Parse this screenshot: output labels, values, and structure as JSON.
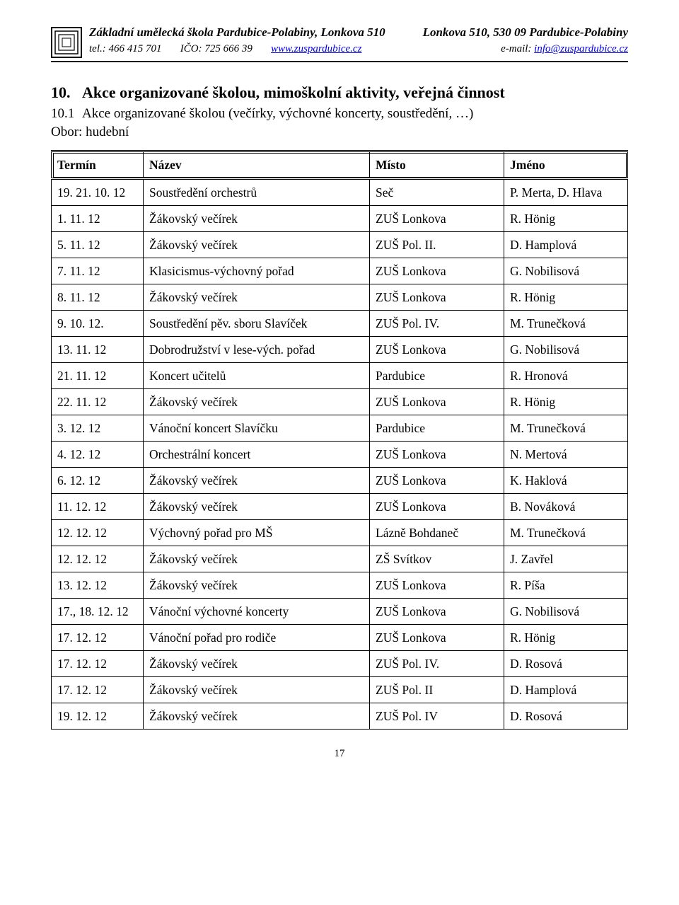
{
  "header": {
    "left_line1": "Základní umělecká škola Pardubice-Polabiny, Lonkova 510",
    "left_tel_label": "tel.: ",
    "left_tel": "466 415 701",
    "left_ico_label": "IČO: ",
    "left_ico": "725 666 39",
    "left_url": "www.zuspardubice.cz",
    "right_line1": "Lonkova 510, 530 09 Pardubice-Polabiny",
    "right_email_label": "e-mail: ",
    "right_email": "info@zuspardubice.cz"
  },
  "section": {
    "num": "10.",
    "title": "Akce organizované školou, mimoškolní aktivity, veřejná činnost",
    "sub_num": "10.1",
    "sub_title": "Akce organizované školou (večírky, výchovné koncerty, soustředění, …)",
    "obor_label": "Obor: hudební"
  },
  "table": {
    "columns": [
      "Termín",
      "Název",
      "Místo",
      "Jméno"
    ],
    "rows": [
      [
        "19. 21. 10. 12",
        "Soustředění orchestrů",
        "Seč",
        "P. Merta, D. Hlava"
      ],
      [
        "1. 11. 12",
        "Žákovský večírek",
        "ZUŠ Lonkova",
        "R. Hönig"
      ],
      [
        "5. 11. 12",
        "Žákovský večírek",
        "ZUŠ Pol. II.",
        "D. Hamplová"
      ],
      [
        "7. 11. 12",
        "Klasicismus-výchovný pořad",
        "ZUŠ Lonkova",
        "G. Nobilisová"
      ],
      [
        "8. 11. 12",
        "Žákovský večírek",
        "ZUŠ Lonkova",
        "R. Hönig"
      ],
      [
        "9. 10. 12.",
        "Soustředění pěv. sboru Slavíček",
        "ZUŠ Pol. IV.",
        "M. Trunečková"
      ],
      [
        "13. 11. 12",
        "Dobrodružství v lese-vých. pořad",
        "ZUŠ Lonkova",
        "G. Nobilisová"
      ],
      [
        "21. 11. 12",
        "Koncert učitelů",
        "Pardubice",
        "R. Hronová"
      ],
      [
        "22. 11. 12",
        "Žákovský večírek",
        "ZUŠ Lonkova",
        "R. Hönig"
      ],
      [
        "3. 12. 12",
        "Vánoční koncert Slavíčku",
        "Pardubice",
        "M. Trunečková"
      ],
      [
        "4. 12. 12",
        "Orchestrální koncert",
        "ZUŠ Lonkova",
        "N. Mertová"
      ],
      [
        "6. 12. 12",
        "Žákovský večírek",
        "ZUŠ Lonkova",
        "K. Haklová"
      ],
      [
        "11. 12. 12",
        "Žákovský večírek",
        "ZUŠ Lonkova",
        "B. Nováková"
      ],
      [
        "12. 12. 12",
        "Výchovný pořad pro MŠ",
        "Lázně Bohdaneč",
        "M. Trunečková"
      ],
      [
        "12. 12. 12",
        "Žákovský večírek",
        "ZŠ Svítkov",
        "J. Zavřel"
      ],
      [
        "13. 12. 12",
        "Žákovský večírek",
        "ZUŠ Lonkova",
        "R. Píša"
      ],
      [
        "17., 18. 12. 12",
        "Vánoční výchovné koncerty",
        "ZUŠ Lonkova",
        "G. Nobilisová"
      ],
      [
        "17. 12. 12",
        "Vánoční pořad pro rodiče",
        "ZUŠ Lonkova",
        "R. Hönig"
      ],
      [
        "17. 12. 12",
        "Žákovský večírek",
        "ZUŠ Pol. IV.",
        "D. Rosová"
      ],
      [
        "17. 12. 12",
        "Žákovský večírek",
        "ZUŠ Pol. II",
        "D. Hamplová"
      ],
      [
        "19. 12. 12",
        "Žákovský večírek",
        "ZUŠ Pol. IV",
        "D. Rosová"
      ]
    ]
  },
  "page_number": "17"
}
